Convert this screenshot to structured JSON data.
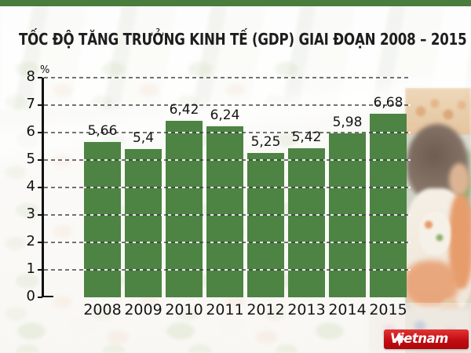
{
  "title": "TỐC ĐỘ TĂNG TRƯỞNG KINH TẾ (GDP) GIAI ĐOẠN 2008 – 2015",
  "chart_data": {
    "type": "bar",
    "title": "TỐC ĐỘ TĂNG TRƯỞNG KINH TẾ (GDP) GIAI ĐOẠN 2008 – 2015",
    "categories": [
      "2008",
      "2009",
      "2010",
      "2011",
      "2012",
      "2013",
      "2014",
      "2015"
    ],
    "values": [
      5.66,
      5.4,
      6.42,
      6.24,
      5.25,
      5.42,
      5.98,
      6.68
    ],
    "value_labels": [
      "5,66",
      "5,4",
      "6,42",
      "6,24",
      "5,25",
      "5,42",
      "5,98",
      "6,68"
    ],
    "unit": "%",
    "xlabel": "",
    "ylabel": "%",
    "ylim": [
      0,
      8
    ],
    "yticks": [
      0,
      1,
      2,
      3,
      4,
      5,
      6,
      7,
      8
    ],
    "grid": "horizontal-dashed",
    "legend": "none",
    "bar_color": "#4d8443"
  },
  "colors": {
    "top_strip": "#4a7c3e",
    "bar_green": "#4d8443",
    "text_dark": "#1d1d1d",
    "logo_red": "#c20d13",
    "logo_text": "#ffffff"
  },
  "branding": {
    "logo_text": "Vietnam",
    "logo_plus": "+"
  }
}
